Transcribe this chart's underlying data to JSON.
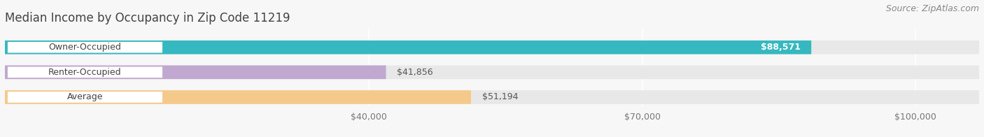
{
  "title": "Median Income by Occupancy in Zip Code 11219",
  "source": "Source: ZipAtlas.com",
  "categories": [
    "Owner-Occupied",
    "Renter-Occupied",
    "Average"
  ],
  "values": [
    88571,
    41856,
    51194
  ],
  "labels": [
    "$88,571",
    "$41,856",
    "$51,194"
  ],
  "bar_colors": [
    "#35b8bf",
    "#c0a8d0",
    "#f5c98a"
  ],
  "background_color": "#f7f7f7",
  "bar_bg_color": "#e8e8e8",
  "xlim": [
    0,
    107000
  ],
  "xticks": [
    40000,
    70000,
    100000
  ],
  "xtick_labels": [
    "$40,000",
    "$70,000",
    "$100,000"
  ],
  "title_fontsize": 12,
  "label_fontsize": 9,
  "tick_fontsize": 9,
  "source_fontsize": 9,
  "bar_height": 0.55,
  "label_inside_color": [
    "#ffffff",
    "#555555",
    "#555555"
  ],
  "label_inside": [
    true,
    false,
    false
  ]
}
